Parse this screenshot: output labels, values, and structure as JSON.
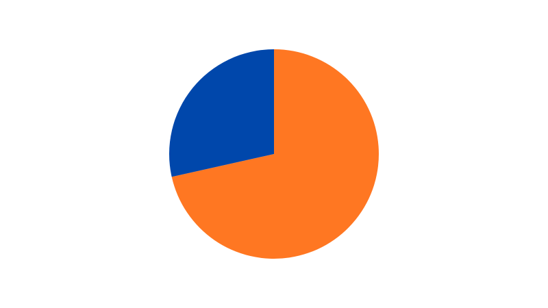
{
  "chart_data": {
    "type": "pie",
    "start_angle_deg": 0,
    "direction": "clockwise",
    "slices": [
      {
        "value": 71.5,
        "color": "#ff7722"
      },
      {
        "value": 28.5,
        "color": "#0047ab"
      }
    ],
    "legend": "none",
    "data_labels": "none"
  }
}
